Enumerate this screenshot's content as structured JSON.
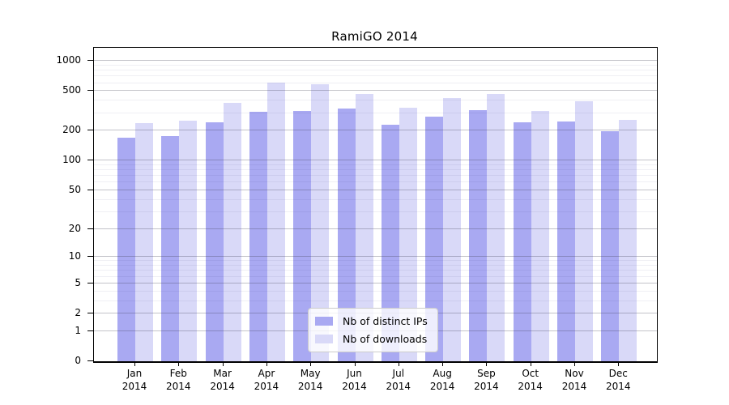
{
  "title": {
    "text": "RamiGO 2014"
  },
  "legend": {
    "items": [
      {
        "label": "Nb of distinct IPs",
        "color": "#a9a9f2"
      },
      {
        "label": "Nb of downloads",
        "color": "#d9d9f8"
      }
    ]
  },
  "chart_data": {
    "type": "bar",
    "title": "RamiGO 2014",
    "categories": [
      "Jan 2014",
      "Feb 2014",
      "Mar 2014",
      "Apr 2014",
      "May 2014",
      "Jun 2014",
      "Jul 2014",
      "Aug 2014",
      "Sep 2014",
      "Oct 2014",
      "Nov 2014",
      "Dec 2014"
    ],
    "series": [
      {
        "name": "Nb of distinct IPs",
        "color": "#a9a9f2",
        "values": [
          170,
          175,
          243,
          308,
          315,
          336,
          229,
          275,
          324,
          244,
          249,
          196
        ]
      },
      {
        "name": "Nb of downloads",
        "color": "#d9d9f8",
        "values": [
          240,
          253,
          380,
          605,
          580,
          470,
          338,
          428,
          465,
          314,
          393,
          257
        ]
      }
    ],
    "xlabel": "",
    "ylabel": "",
    "y_scale": "log10(1+y)",
    "y_ticks": [
      0,
      1,
      2,
      5,
      10,
      20,
      50,
      100,
      200,
      500,
      1000
    ],
    "y_minor_ticks": [
      3,
      4,
      6,
      7,
      8,
      9,
      30,
      40,
      60,
      70,
      80,
      90,
      300,
      400,
      600,
      700,
      800,
      900
    ],
    "ylim": [
      0,
      1350
    ],
    "grid": true,
    "legend_position": "lower center"
  }
}
